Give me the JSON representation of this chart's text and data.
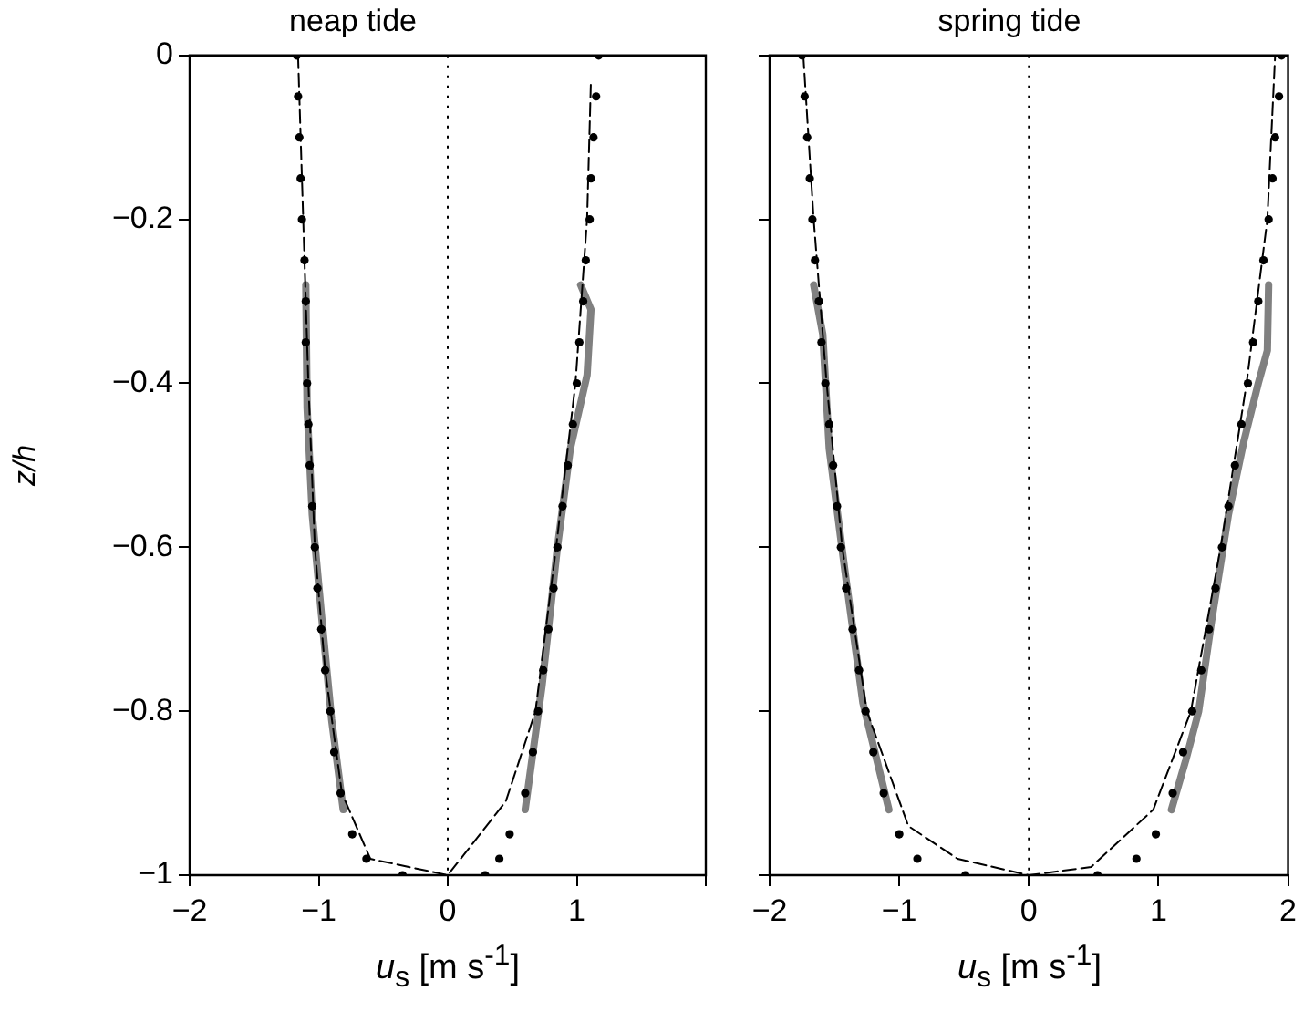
{
  "chart_data": [
    {
      "type": "scatter",
      "title": "neap tide",
      "xlabel": "u$_{s}$ [m s$^{-1}$]",
      "ylabel": "z/h",
      "xlim": [
        -2,
        2
      ],
      "xticks": [
        {
          "value": -2,
          "label": "−2"
        },
        {
          "value": -1,
          "label": "−1"
        },
        0,
        1,
        {
          "value": 2,
          "label": null
        }
      ],
      "ylim": [
        -1,
        0
      ],
      "yticks": [
        {
          "value": -1,
          "label": "−1"
        },
        {
          "value": -0.8,
          "label": "−0.8"
        },
        {
          "value": -0.6,
          "label": "−0.6"
        },
        {
          "value": -0.4,
          "label": "−0.4"
        },
        {
          "value": -0.2,
          "label": "−0.2"
        },
        0
      ],
      "ref_lines": [
        {
          "axis": "x",
          "value": 0,
          "color": "#000000",
          "line_style": "dotted"
        }
      ],
      "series": [
        {
          "type": "scatter",
          "color": "#000000",
          "marker": "circle",
          "x": [
            -1.17,
            -1.16,
            -1.15,
            -1.14,
            -1.13,
            -1.11,
            -1.1,
            -1.1,
            -1.09,
            -1.08,
            -1.07,
            -1.05,
            -1.03,
            -1.01,
            -0.98,
            -0.95,
            -0.91,
            -0.88,
            -0.83,
            -0.74,
            -0.63,
            -0.35,
            1.17,
            1.15,
            1.13,
            1.11,
            1.1,
            1.07,
            1.05,
            1.02,
            1.0,
            0.97,
            0.93,
            0.89,
            0.85,
            0.82,
            0.78,
            0.74,
            0.7,
            0.66,
            0.6,
            0.48,
            0.4,
            0.29
          ],
          "values": [
            0,
            -0.05,
            -0.1,
            -0.15,
            -0.2,
            -0.25,
            -0.3,
            -0.35,
            -0.4,
            -0.45,
            -0.5,
            -0.55,
            -0.6,
            -0.65,
            -0.7,
            -0.75,
            -0.8,
            -0.85,
            -0.9,
            -0.95,
            -0.98,
            -1,
            0,
            -0.05,
            -0.1,
            -0.15,
            -0.2,
            -0.25,
            -0.3,
            -0.35,
            -0.4,
            -0.45,
            -0.5,
            -0.55,
            -0.6,
            -0.65,
            -0.7,
            -0.75,
            -0.8,
            -0.85,
            -0.9,
            -0.95,
            -0.98,
            -1
          ]
        },
        {
          "type": "line",
          "color": "#000000",
          "marker": "none",
          "line_style": "dashed",
          "x": [
            -1.16,
            -1.12,
            -1.08,
            -1.03,
            -0.95,
            -0.82,
            -0.6,
            0,
            0.45,
            0.68,
            0.84,
            0.99,
            1.08,
            1.11
          ],
          "values": [
            0,
            -0.2,
            -0.4,
            -0.6,
            -0.75,
            -0.9,
            -0.98,
            -1,
            -0.91,
            -0.8,
            -0.6,
            -0.4,
            -0.2,
            -0.03
          ]
        },
        {
          "type": "line",
          "color": "#808080",
          "marker": "none",
          "line_style": "solid",
          "x": [
            -1.1,
            -1.09,
            -1.05,
            -0.98,
            -0.9,
            -0.81
          ],
          "values": [
            -0.28,
            -0.43,
            -0.56,
            -0.68,
            -0.81,
            -0.92
          ]
        },
        {
          "type": "line",
          "color": "#808080",
          "marker": "none",
          "line_style": "solid",
          "x": [
            1.03,
            1.11,
            1.08,
            0.95,
            0.85,
            0.73,
            0.6
          ],
          "values": [
            -0.28,
            -0.31,
            -0.39,
            -0.48,
            -0.6,
            -0.77,
            -0.92
          ]
        }
      ]
    },
    {
      "type": "scatter",
      "title": "spring tide",
      "xlabel": "u$_{s}$ [m s$^{-1}$]",
      "tick_labels": "x",
      "xlim": [
        -2,
        2
      ],
      "xticks": [
        {
          "value": -2,
          "label": "−2"
        },
        {
          "value": -1,
          "label": "−1"
        },
        0,
        1,
        2
      ],
      "ylim": [
        -1,
        0
      ],
      "yticks": [
        -1,
        -0.8,
        -0.6,
        -0.4,
        -0.2,
        0
      ],
      "ref_lines": [
        {
          "axis": "x",
          "value": 0,
          "color": "#000000",
          "line_style": "dotted"
        }
      ],
      "series": [
        {
          "type": "scatter",
          "color": "#000000",
          "marker": "circle",
          "x": [
            -1.75,
            -1.73,
            -1.71,
            -1.69,
            -1.67,
            -1.65,
            -1.62,
            -1.6,
            -1.57,
            -1.54,
            -1.51,
            -1.48,
            -1.45,
            -1.41,
            -1.36,
            -1.31,
            -1.26,
            -1.2,
            -1.12,
            -1.0,
            -0.86,
            -0.49,
            1.95,
            1.93,
            1.9,
            1.88,
            1.85,
            1.81,
            1.77,
            1.73,
            1.69,
            1.64,
            1.59,
            1.54,
            1.49,
            1.44,
            1.39,
            1.33,
            1.26,
            1.19,
            1.11,
            0.98,
            0.83,
            0.53
          ],
          "values": [
            0,
            -0.05,
            -0.1,
            -0.15,
            -0.2,
            -0.25,
            -0.3,
            -0.35,
            -0.4,
            -0.45,
            -0.5,
            -0.55,
            -0.6,
            -0.65,
            -0.7,
            -0.75,
            -0.8,
            -0.85,
            -0.9,
            -0.95,
            -0.98,
            -1,
            0,
            -0.05,
            -0.1,
            -0.15,
            -0.2,
            -0.25,
            -0.3,
            -0.35,
            -0.4,
            -0.45,
            -0.5,
            -0.55,
            -0.6,
            -0.65,
            -0.7,
            -0.75,
            -0.8,
            -0.85,
            -0.9,
            -0.95,
            -0.98,
            -1
          ]
        },
        {
          "type": "line",
          "color": "#000000",
          "marker": "none",
          "line_style": "dashed",
          "x": [
            -1.74,
            -1.66,
            -1.56,
            -1.44,
            -1.25,
            -0.93,
            -0.55,
            0,
            0.48,
            0.96,
            1.25,
            1.48,
            1.68,
            1.84,
            1.9
          ],
          "values": [
            0,
            -0.2,
            -0.4,
            -0.6,
            -0.8,
            -0.94,
            -0.98,
            -1,
            -0.99,
            -0.92,
            -0.8,
            -0.6,
            -0.4,
            -0.2,
            0
          ]
        },
        {
          "type": "line",
          "color": "#808080",
          "marker": "none",
          "line_style": "solid",
          "x": [
            -1.66,
            -1.59,
            -1.54,
            -1.41,
            -1.28,
            -1.08
          ],
          "values": [
            -0.28,
            -0.34,
            -0.48,
            -0.64,
            -0.79,
            -0.92
          ]
        },
        {
          "type": "line",
          "color": "#808080",
          "marker": "none",
          "line_style": "solid",
          "x": [
            1.85,
            1.84,
            1.77,
            1.66,
            1.54,
            1.41,
            1.31,
            1.21,
            1.1
          ],
          "values": [
            -0.28,
            -0.36,
            -0.4,
            -0.47,
            -0.56,
            -0.69,
            -0.8,
            -0.86,
            -0.92
          ]
        }
      ]
    }
  ]
}
